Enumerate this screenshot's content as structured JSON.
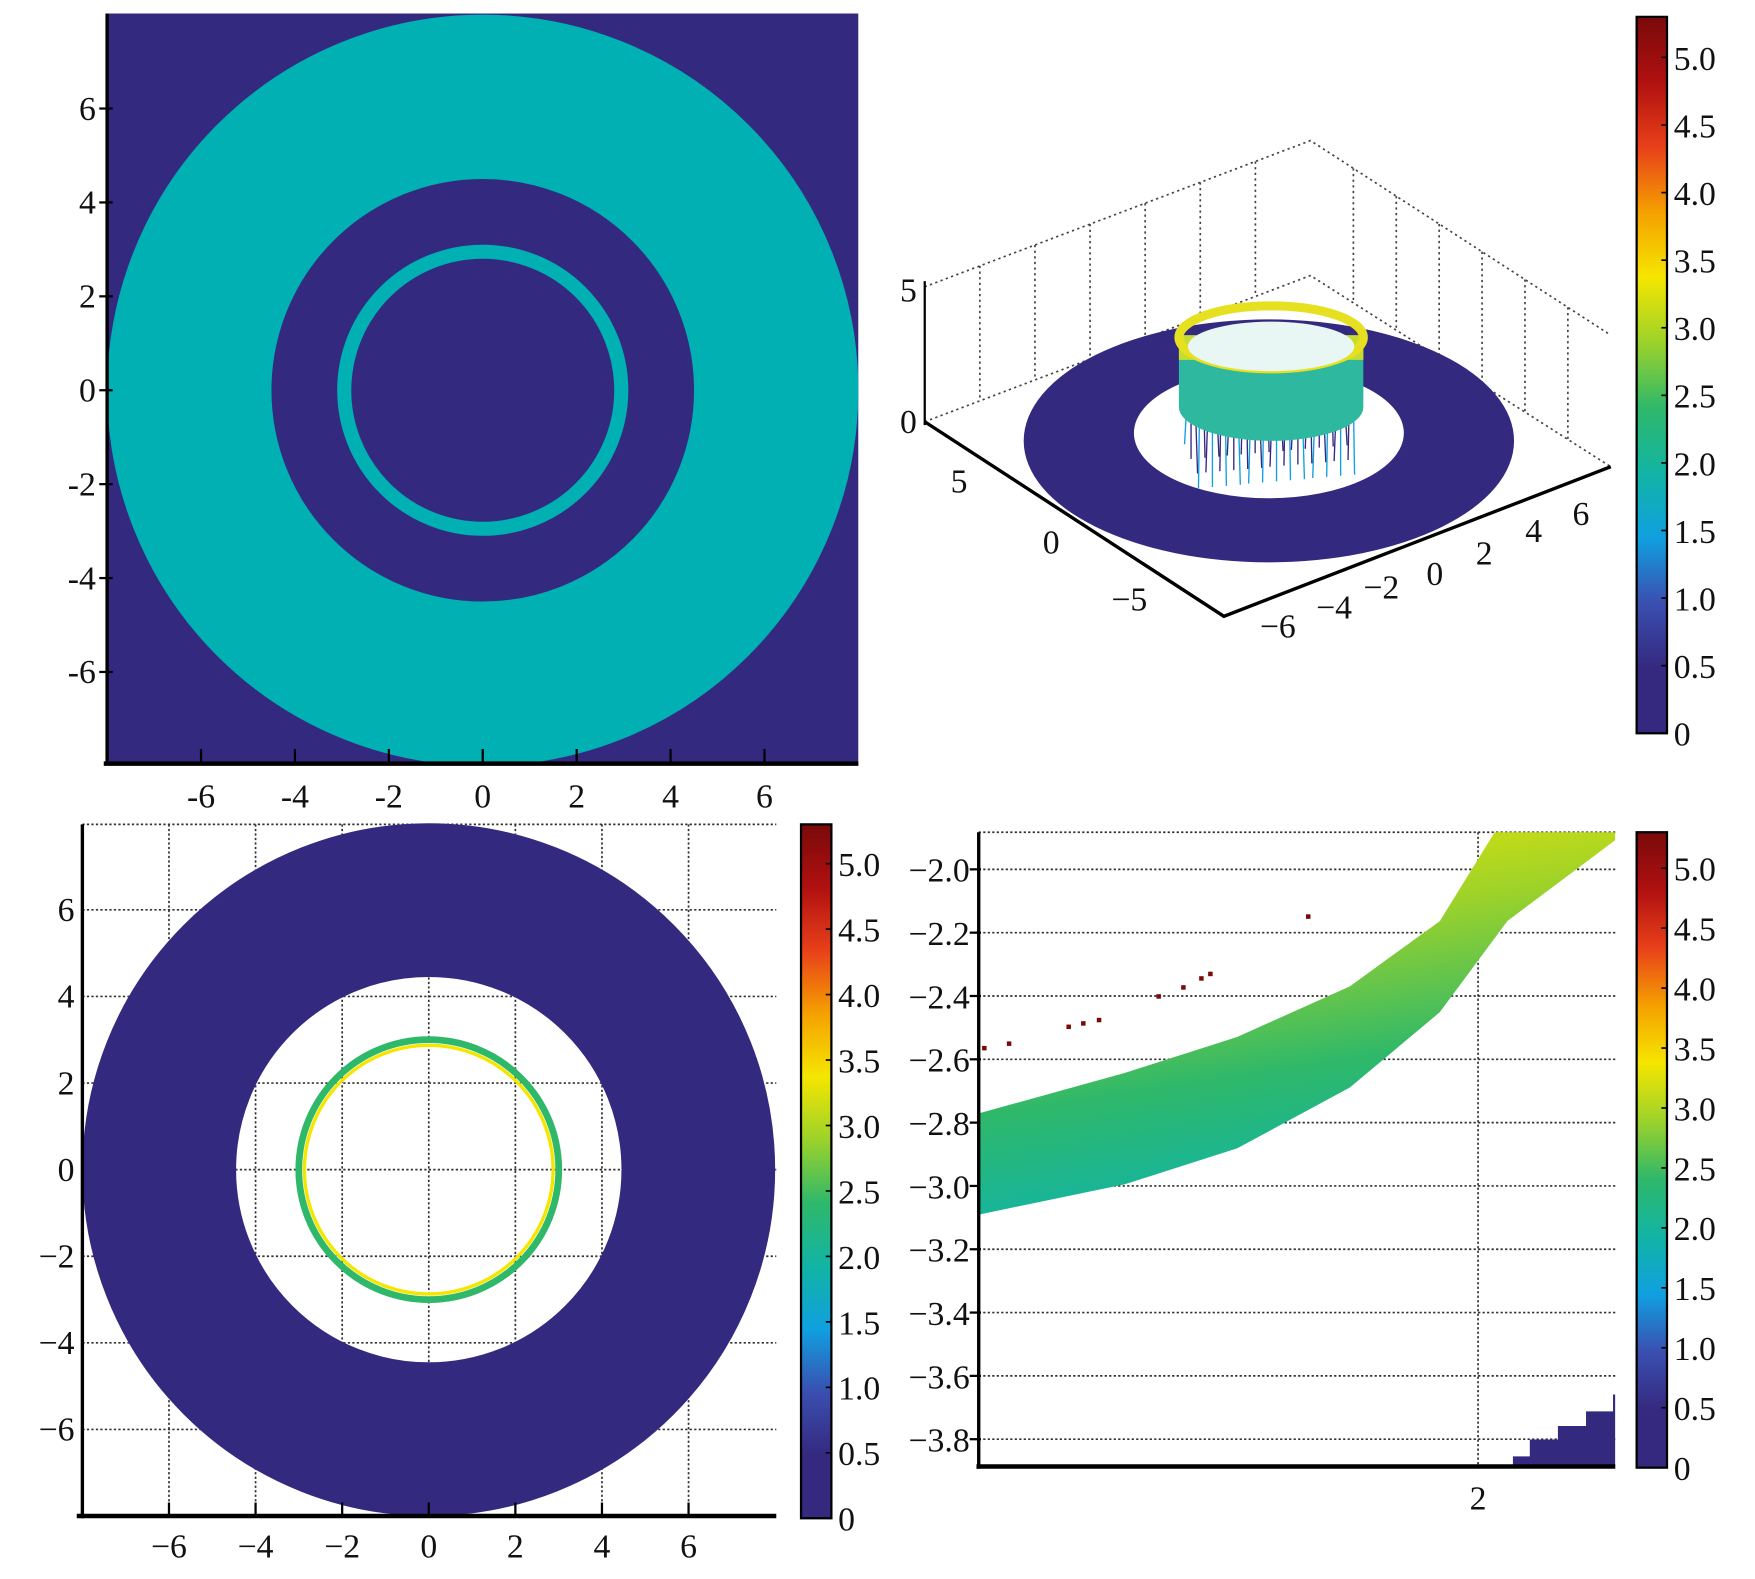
{
  "colors": {
    "background_dark": "#332a80",
    "teal": "#00b0b2",
    "colormap": [
      "#35297f",
      "#35297f",
      "#3a4fb0",
      "#10a0e0",
      "#12b4a4",
      "#2fb86a",
      "#9cd22a",
      "#f5e600",
      "#f5a000",
      "#e8401a",
      "#b01010",
      "#7a0a0a"
    ]
  },
  "chart_data": [
    {
      "type": "heatmap",
      "name": "top-left 2D map",
      "xlim": [
        -8,
        8
      ],
      "ylim": [
        -8,
        8
      ],
      "xticks": [
        "-6",
        "-4",
        "-2",
        "0",
        "2",
        "4",
        "6"
      ],
      "yticks": [
        "6",
        "4",
        "2",
        "0",
        "-2",
        "-4",
        "-6"
      ],
      "regions": [
        {
          "shape": "annulus",
          "r_inner": 4.5,
          "r_outer": 8.0,
          "color": "teal"
        },
        {
          "shape": "annulus",
          "r_inner": 2.8,
          "r_outer": 3.1,
          "color": "teal"
        }
      ]
    },
    {
      "type": "surface3d",
      "name": "top-right 3D surface",
      "zticks": [
        "5",
        "0"
      ],
      "yticks": [
        "5",
        "0",
        "−5"
      ],
      "xticks": [
        "−6",
        "−4",
        "−2",
        "0",
        "2",
        "4",
        "6"
      ],
      "disk": {
        "r_inner": 4.5,
        "r_outer": 8.0,
        "value": 0.2
      },
      "ring": {
        "radius": 3.0,
        "peak": 3.4
      }
    },
    {
      "type": "heatmap",
      "name": "bottom-left 2D map",
      "xlim": [
        -8,
        8
      ],
      "ylim": [
        -8,
        8
      ],
      "grid": true,
      "xticks": [
        "−6",
        "−4",
        "−2",
        "0",
        "2",
        "4",
        "6"
      ],
      "yticks": [
        "6",
        "4",
        "2",
        "0",
        "−2",
        "−4",
        "−6"
      ],
      "regions": [
        {
          "shape": "annulus",
          "r_inner": 4.45,
          "r_outer": 8.0,
          "value": 0.3
        },
        {
          "shape": "ring",
          "radius": 2.95,
          "value_outer": 2.2,
          "value_inner": 3.2
        }
      ]
    },
    {
      "type": "heatmap",
      "name": "bottom-right zoomed map",
      "ylim": [
        -3.89,
        -1.88
      ],
      "grid": true,
      "xticks": [
        "2"
      ],
      "yticks": [
        "−2.0",
        "−2.2",
        "−2.4",
        "−2.6",
        "−2.8",
        "−3.0",
        "−3.2",
        "−3.4",
        "−3.6",
        "−3.8"
      ],
      "band_value_range": [
        1.8,
        3.6
      ],
      "outliers_value": 5.2
    }
  ],
  "colorbars": [
    {
      "ticks": [
        "5.0",
        "4.5",
        "4.0",
        "3.5",
        "3.0",
        "2.5",
        "2.0",
        "1.5",
        "1.0",
        "0.5",
        "0"
      ],
      "range": [
        0,
        5.3
      ]
    },
    {
      "ticks": [
        "5.0",
        "4.5",
        "4.0",
        "3.5",
        "3.0",
        "2.5",
        "2.0",
        "1.5",
        "1.0",
        "0.5",
        "0"
      ],
      "range": [
        0,
        5.3
      ]
    },
    {
      "ticks": [
        "5.0",
        "4.5",
        "4.0",
        "3.5",
        "3.0",
        "2.5",
        "2.0",
        "1.5",
        "1.0",
        "0.5",
        "0"
      ],
      "range": [
        0,
        5.3
      ]
    }
  ]
}
